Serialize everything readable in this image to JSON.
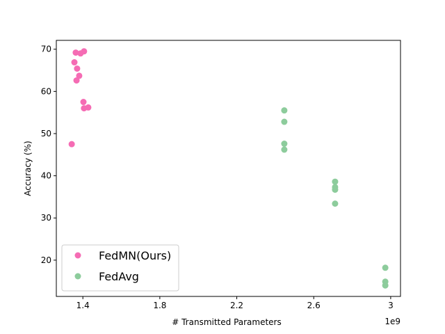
{
  "chart_data": {
    "type": "scatter",
    "xlabel": "# Transmitted Parameters",
    "ylabel": "Accuracy (%)",
    "x_offset_label": "1e9",
    "xlim": [
      1.262,
      3.051
    ],
    "xticks": [
      1.4,
      1.8,
      2.2,
      2.6,
      3.0
    ],
    "ylim": [
      11.4,
      72.1
    ],
    "yticks": [
      20,
      30,
      40,
      50,
      60,
      70
    ],
    "legend": "lower left",
    "series": [
      {
        "name": "FedMN(Ours)",
        "color": "#f56cb4",
        "x": [
          1.342,
          1.356,
          1.363,
          1.37,
          1.367,
          1.381,
          1.388,
          1.406,
          1.403,
          1.406,
          1.428
        ],
        "values": [
          47.5,
          66.9,
          69.2,
          65.4,
          62.6,
          63.7,
          69.0,
          69.5,
          57.5,
          56.0,
          56.2
        ]
      },
      {
        "name": "FedAvg",
        "color": "#8dcc9c",
        "x": [
          2.447,
          2.447,
          2.447,
          2.447,
          2.711,
          2.711,
          2.711,
          2.711,
          2.972,
          2.972,
          2.972
        ],
        "values": [
          55.5,
          52.8,
          47.6,
          46.2,
          38.6,
          37.3,
          36.7,
          33.4,
          18.2,
          14.9,
          14.0
        ]
      }
    ]
  }
}
